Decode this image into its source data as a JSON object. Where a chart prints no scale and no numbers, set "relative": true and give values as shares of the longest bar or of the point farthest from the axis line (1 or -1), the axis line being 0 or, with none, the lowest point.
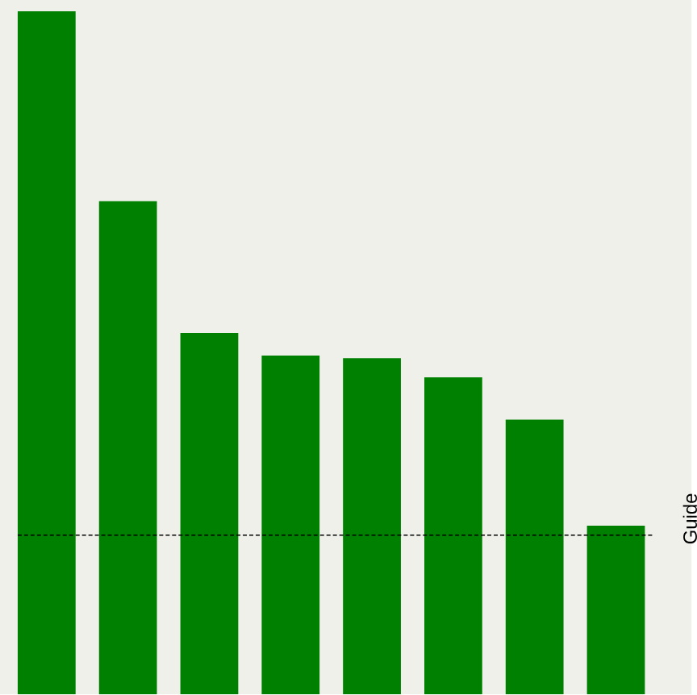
{
  "chart_data": {
    "type": "bar",
    "relative": true,
    "categories": [
      null,
      null,
      null,
      null,
      null,
      null,
      null,
      null
    ],
    "values": [
      1,
      0.722,
      0.529,
      0.496,
      0.492,
      0.464,
      0.402,
      0.247
    ],
    "color": "#008000",
    "ref_lines": [
      {
        "axis": "y",
        "value": 0.233,
        "label": "Guide",
        "color": "#000000",
        "line_style": "dashed"
      }
    ]
  }
}
